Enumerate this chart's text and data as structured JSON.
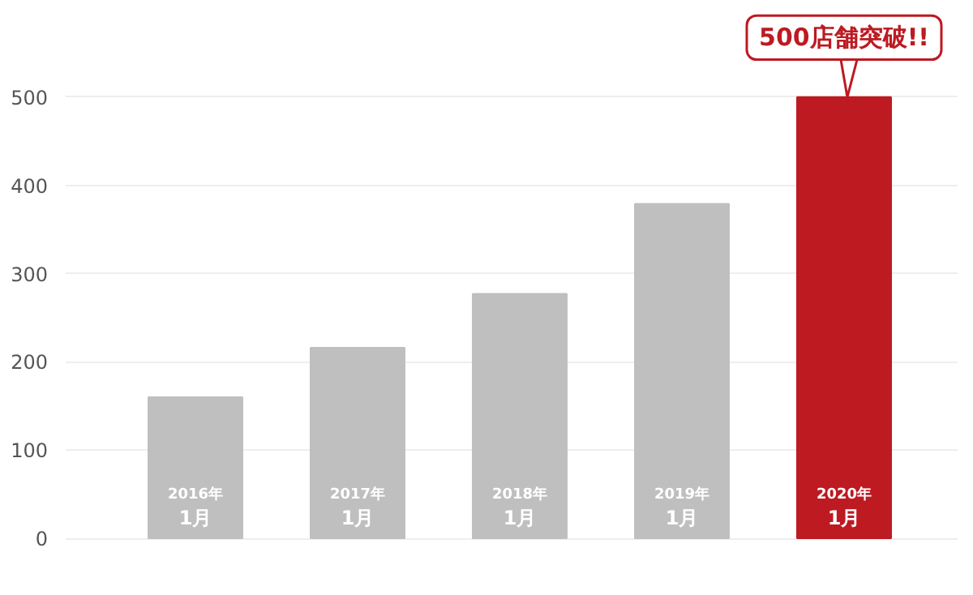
{
  "chart_data": {
    "type": "bar",
    "categories": [
      "2016年\n1月",
      "2017年\n1月",
      "2018年\n1月",
      "2019年\n1月",
      "2020年\n1月"
    ],
    "values": [
      160,
      216,
      277,
      379,
      500
    ],
    "colors": [
      "#bfbfbf",
      "#bfbfbf",
      "#bfbfbf",
      "#bfbfbf",
      "#bd1a22"
    ],
    "ylim": [
      0,
      500
    ],
    "yticks": [
      0,
      100,
      200,
      300,
      400,
      500
    ],
    "grid": "y",
    "annotations": [
      {
        "text": "500店舗突破!!",
        "x": "2020年\n1月",
        "y": 500
      }
    ]
  }
}
